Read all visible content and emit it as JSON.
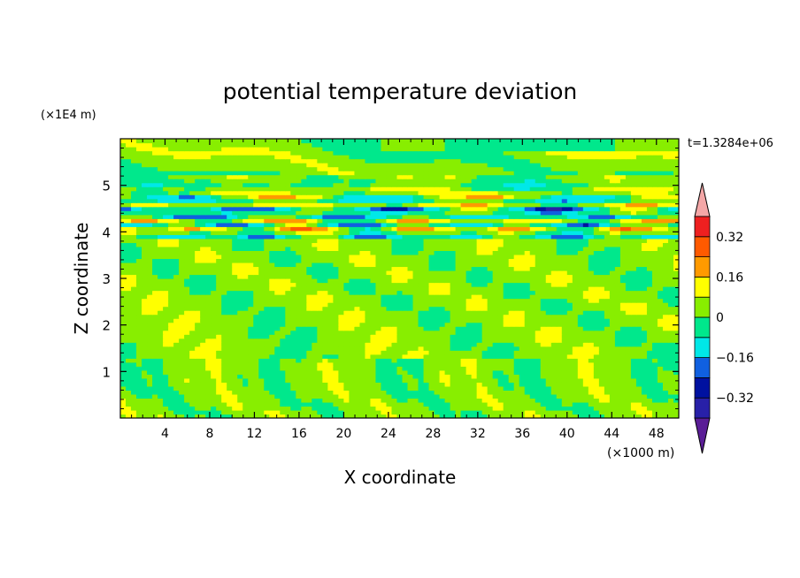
{
  "chart_data": {
    "type": "heatmap",
    "title": "potential temperature deviation",
    "xlabel": "X coordinate",
    "ylabel": "Z coordinate",
    "x_unit": "(×1000 m)",
    "y_unit": "(×1E4 m)",
    "time_label": "t=1.3284e+06",
    "xlim": [
      0,
      50
    ],
    "ylim": [
      0,
      6
    ],
    "x_ticks": [
      4,
      8,
      12,
      16,
      20,
      24,
      28,
      32,
      36,
      40,
      44,
      48
    ],
    "y_ticks": [
      1,
      2,
      3,
      4,
      5
    ],
    "colorbar": {
      "levels": [
        -0.4,
        -0.36,
        -0.32,
        -0.24,
        -0.16,
        -0.08,
        0,
        0.08,
        0.16,
        0.24,
        0.32,
        0.36,
        0.4
      ],
      "colors": [
        "#5a1d96",
        "#2820a8",
        "#0011a0",
        "#1060e0",
        "#00e8e8",
        "#00e88c",
        "#88ee00",
        "#ffff00",
        "#ff9a00",
        "#ff5a00",
        "#ee2020",
        "#f4a7a7"
      ],
      "labels": [
        "-0.32",
        "-0.16",
        "0",
        "0.16",
        "0.32"
      ]
    },
    "bands": [
      {
        "z": 5.0,
        "dz": 0.12,
        "value": -0.1
      },
      {
        "z": 4.95,
        "dz": 0.05,
        "value": 0.1
      },
      {
        "z": 4.78,
        "dz": 0.06,
        "value": 0.2
      },
      {
        "z": 4.72,
        "dz": 0.06,
        "value": -0.3
      },
      {
        "z": 4.55,
        "dz": 0.05,
        "value": 0.18
      },
      {
        "z": 4.48,
        "dz": 0.07,
        "value": -0.34
      },
      {
        "z": 4.3,
        "dz": 0.05,
        "value": -0.3
      },
      {
        "z": 4.22,
        "dz": 0.05,
        "value": 0.2
      },
      {
        "z": 4.13,
        "dz": 0.05,
        "value": -0.32
      },
      {
        "z": 4.05,
        "dz": 0.05,
        "value": 0.24
      },
      {
        "z": 3.93,
        "dz": 0.05,
        "value": -0.3
      }
    ]
  }
}
